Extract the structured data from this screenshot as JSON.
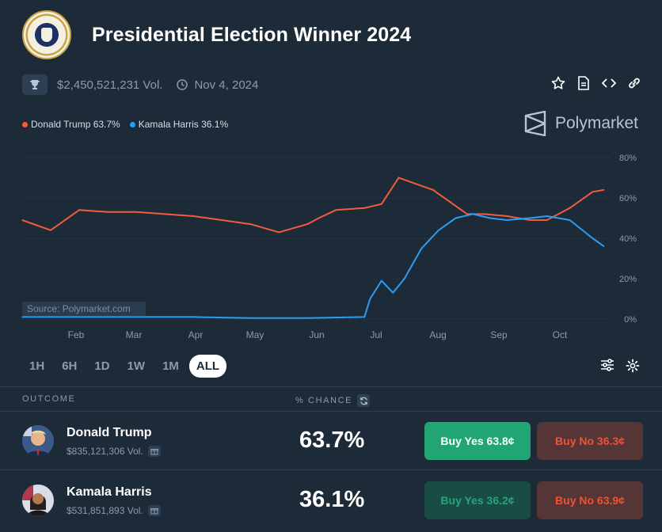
{
  "title": "Presidential Election Winner 2024",
  "volume": "$2,450,521,231 Vol.",
  "date": "Nov 4, 2024",
  "brand": "Polymarket",
  "source": "Source: Polymarket.com",
  "colors": {
    "trump": "#f25c3a",
    "harris": "#2a9df4",
    "grid": "#3a4a5c"
  },
  "legend": [
    {
      "label": "Donald Trump 63.7%",
      "color": "#f25c3a"
    },
    {
      "label": "Kamala Harris 36.1%",
      "color": "#2a9df4"
    }
  ],
  "tabs": [
    "1H",
    "6H",
    "1D",
    "1W",
    "1M",
    "ALL"
  ],
  "active_tab": "ALL",
  "table": {
    "outcome_header": "OUTCOME",
    "chance_header": "% CHANCE"
  },
  "outcomes": [
    {
      "name": "Donald Trump",
      "volume": "$835,121,306 Vol.",
      "chance": "63.7%",
      "buy_yes": "Buy Yes 63.8¢",
      "buy_no": "Buy No 36.3¢"
    },
    {
      "name": "Kamala Harris",
      "volume": "$531,851,893 Vol.",
      "chance": "36.1%",
      "buy_yes": "Buy Yes 36.2¢",
      "buy_no": "Buy No 63.9¢"
    }
  ],
  "chart_data": {
    "type": "line",
    "x_ticks": [
      "Feb",
      "Mar",
      "Apr",
      "May",
      "Jun",
      "Jul",
      "Aug",
      "Sep",
      "Oct"
    ],
    "y_ticks": [
      "80%",
      "60%",
      "40%",
      "20%",
      "0%"
    ],
    "ylim": [
      0,
      80
    ],
    "grid": true,
    "series": [
      {
        "name": "Donald Trump",
        "color": "#f25c3a",
        "x": [
          0,
          0.5,
          1,
          1.5,
          2,
          2.5,
          3,
          3.5,
          4,
          4.5,
          5,
          5.2,
          5.5,
          6,
          6.3,
          6.6,
          6.9,
          7.2,
          7.5,
          7.8,
          8.1,
          8.5,
          8.9,
          9.2,
          9.6,
          10,
          10.2
        ],
        "y": [
          49,
          44,
          54,
          53,
          53,
          52,
          51,
          49,
          47,
          43,
          47,
          50,
          54,
          55,
          57,
          70,
          67,
          64,
          58,
          52,
          52,
          51,
          49,
          49,
          55,
          63,
          64
        ]
      },
      {
        "name": "Kamala Harris",
        "color": "#2a9df4",
        "x": [
          0,
          1,
          2,
          3,
          4,
          5,
          6,
          6.1,
          6.3,
          6.5,
          6.7,
          7.0,
          7.3,
          7.6,
          7.9,
          8.2,
          8.5,
          8.9,
          9.2,
          9.6,
          10,
          10.2
        ],
        "y": [
          1,
          1,
          1,
          1,
          0.5,
          0.5,
          1,
          10,
          19,
          13,
          20,
          35,
          44,
          50,
          52,
          50,
          49,
          50,
          51,
          49,
          40,
          36
        ]
      }
    ]
  }
}
